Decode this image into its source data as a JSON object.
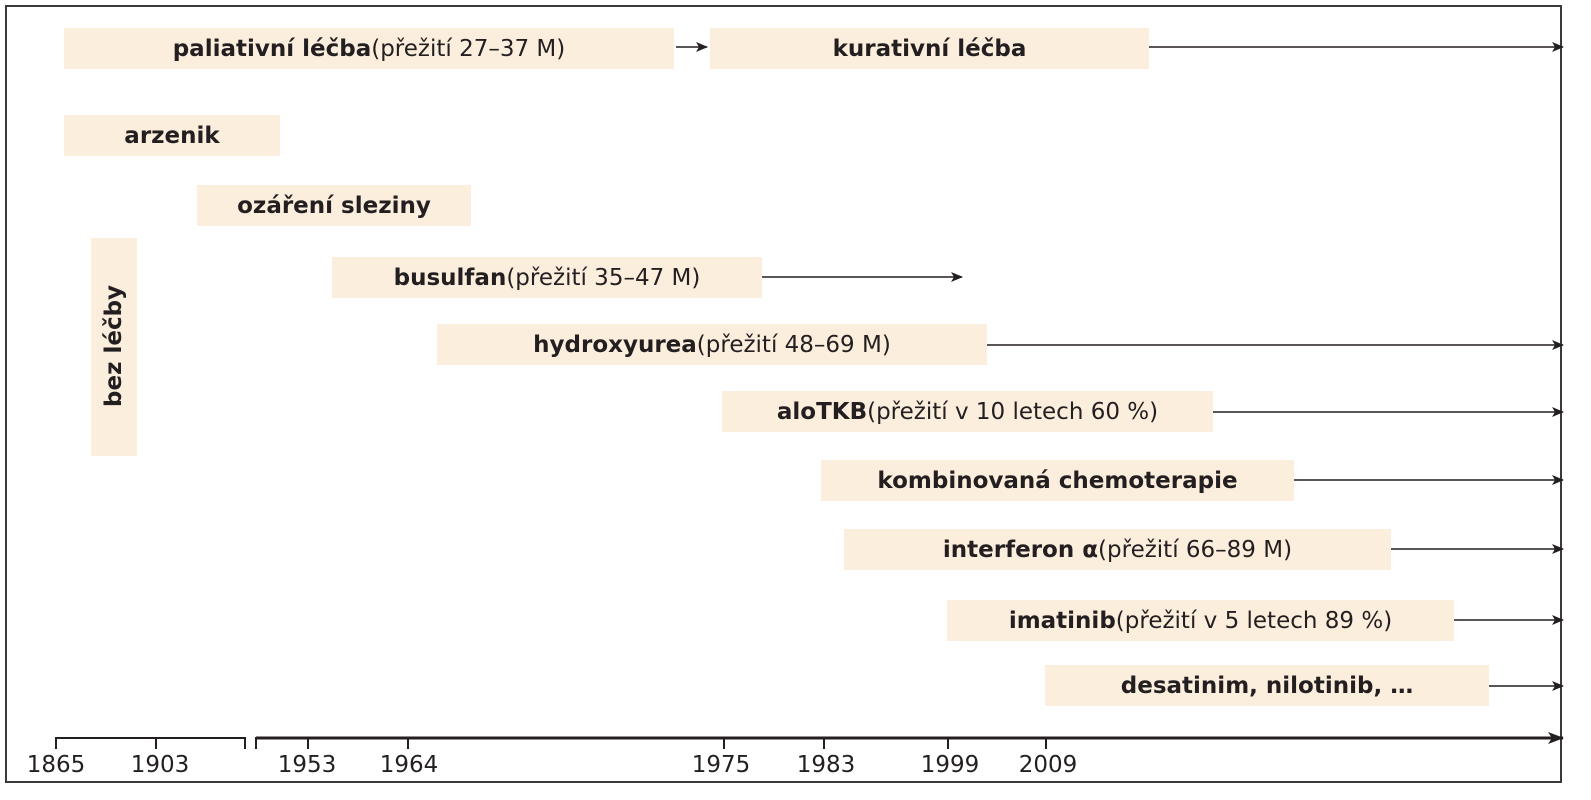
{
  "bars": [
    {
      "id": "paliativni",
      "bold": "paliativní léčba",
      "rest": " (přežití 27–37 M)"
    },
    {
      "id": "kurativni",
      "bold": "kurativní léčba",
      "rest": ""
    },
    {
      "id": "arzenik",
      "bold": "arzenik",
      "rest": ""
    },
    {
      "id": "ozareni",
      "bold": "ozáření sleziny",
      "rest": ""
    },
    {
      "id": "busulfan",
      "bold": "busulfan",
      "rest": " (přežití 35–47 M)"
    },
    {
      "id": "hydroxyurea",
      "bold": "hydroxyurea",
      "rest": " (přežití 48–69 M)"
    },
    {
      "id": "alotkb",
      "bold": "aloTKB",
      "rest": " (přežití v 10 letech 60 %)"
    },
    {
      "id": "kombinovana",
      "bold": "kombinovaná chemoterapie",
      "rest": ""
    },
    {
      "id": "interferon",
      "bold": "interferon α",
      "rest": " (přežití 66–89 M)"
    },
    {
      "id": "imatinib",
      "bold": "imatinib",
      "rest": " (přežití v 5 letech 89 %)"
    },
    {
      "id": "desatinim",
      "bold": "desatinim, nilotinib, …",
      "rest": ""
    }
  ],
  "vertical_bar": {
    "label": "bez léčby"
  },
  "axis": {
    "ticks": [
      "1865",
      "1903",
      "1953",
      "1964",
      "1975",
      "1983",
      "1999",
      "2009"
    ]
  },
  "colors": {
    "bar_fill": "#fbeedd",
    "ink": "#231f20",
    "frame": "#3a3a3a"
  }
}
